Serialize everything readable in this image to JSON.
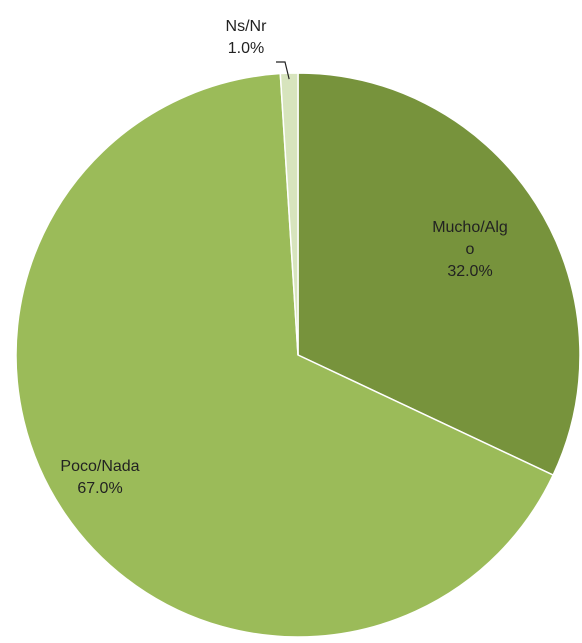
{
  "chart_data": {
    "type": "pie",
    "categories": [
      "Mucho/Algo",
      "Poco/Nada",
      "Ns/Nr"
    ],
    "values": [
      32,
      67,
      1
    ],
    "value_labels": [
      "32.0%",
      "67.0%",
      "1.0%"
    ],
    "colors": [
      "#77933c",
      "#9bbb59",
      "#d7e4bd"
    ]
  }
}
